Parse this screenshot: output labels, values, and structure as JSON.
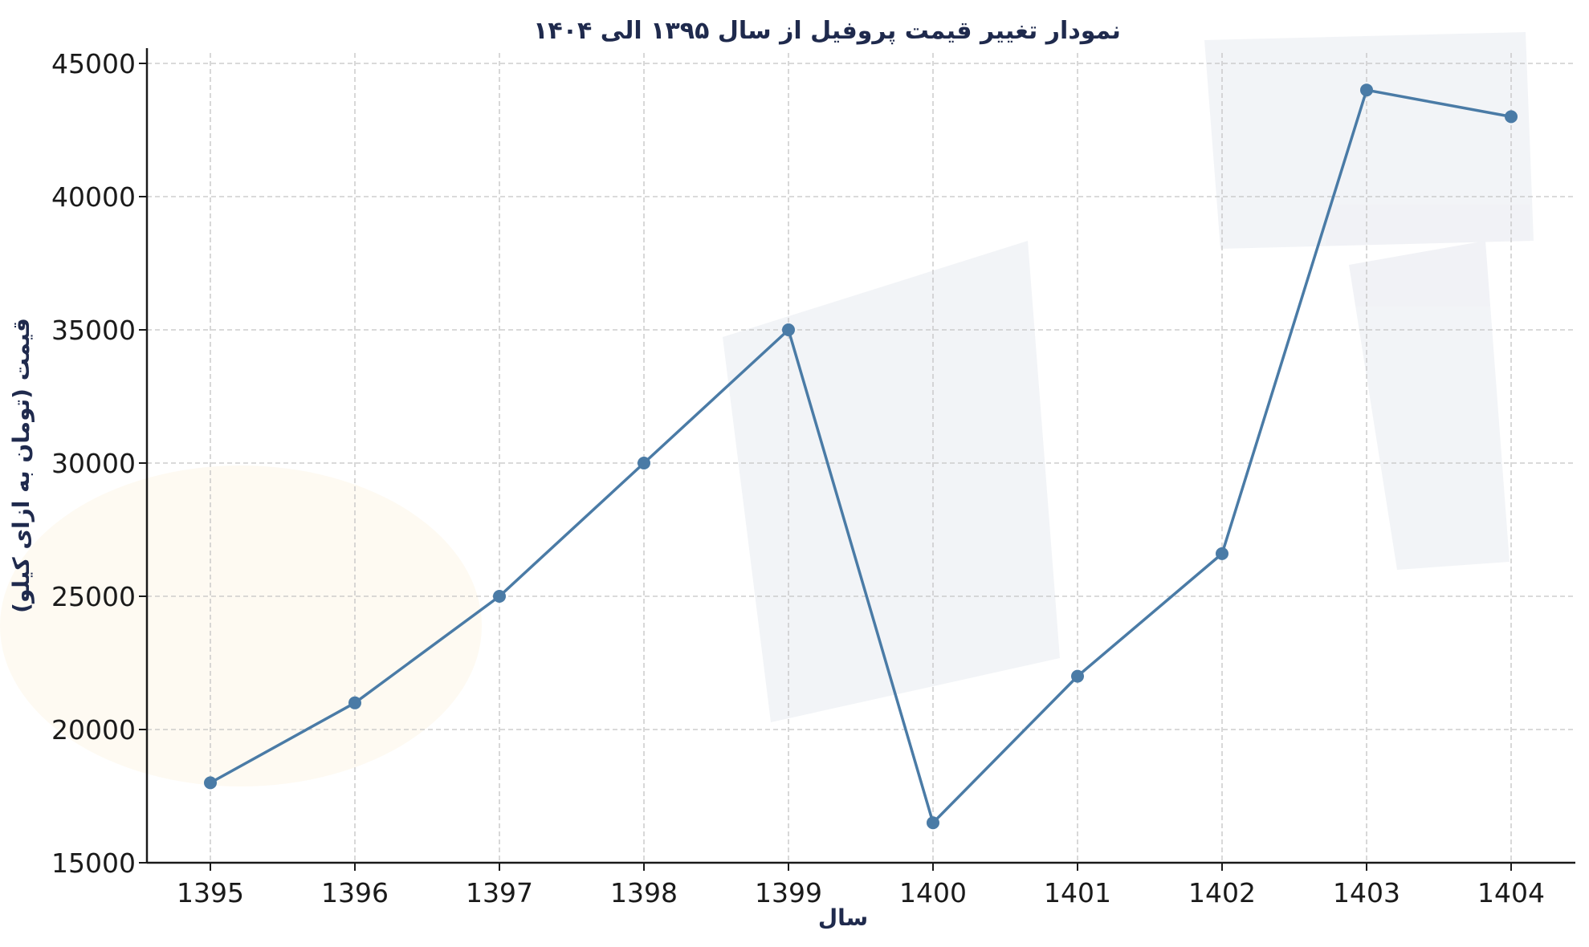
{
  "chart_data": {
    "type": "line",
    "title": "نمودار تغییر قیمت پروفیل از سال ۱۳۹۵ الی ۱۴۰۴",
    "xlabel": "سال",
    "ylabel": "قیمت (تومان به ازای کیلو)",
    "x": [
      "1395",
      "1396",
      "1397",
      "1398",
      "1399",
      "1400",
      "1401",
      "1402",
      "1403",
      "1404"
    ],
    "series": [
      {
        "values": [
          18000,
          21000,
          25000,
          30000,
          35000,
          16500,
          22000,
          26600,
          44000,
          43000
        ]
      }
    ],
    "ylim": [
      15000,
      45000
    ],
    "yticks": [
      "15000",
      "20000",
      "25000",
      "30000",
      "35000",
      "40000",
      "45000"
    ],
    "grid": true,
    "colors": {
      "line": "#4a7ba6",
      "marker": "#4a7ba6",
      "axis": "#1a1a1a",
      "grid": "#c4c4c4",
      "title": "#1f2a4d"
    }
  }
}
